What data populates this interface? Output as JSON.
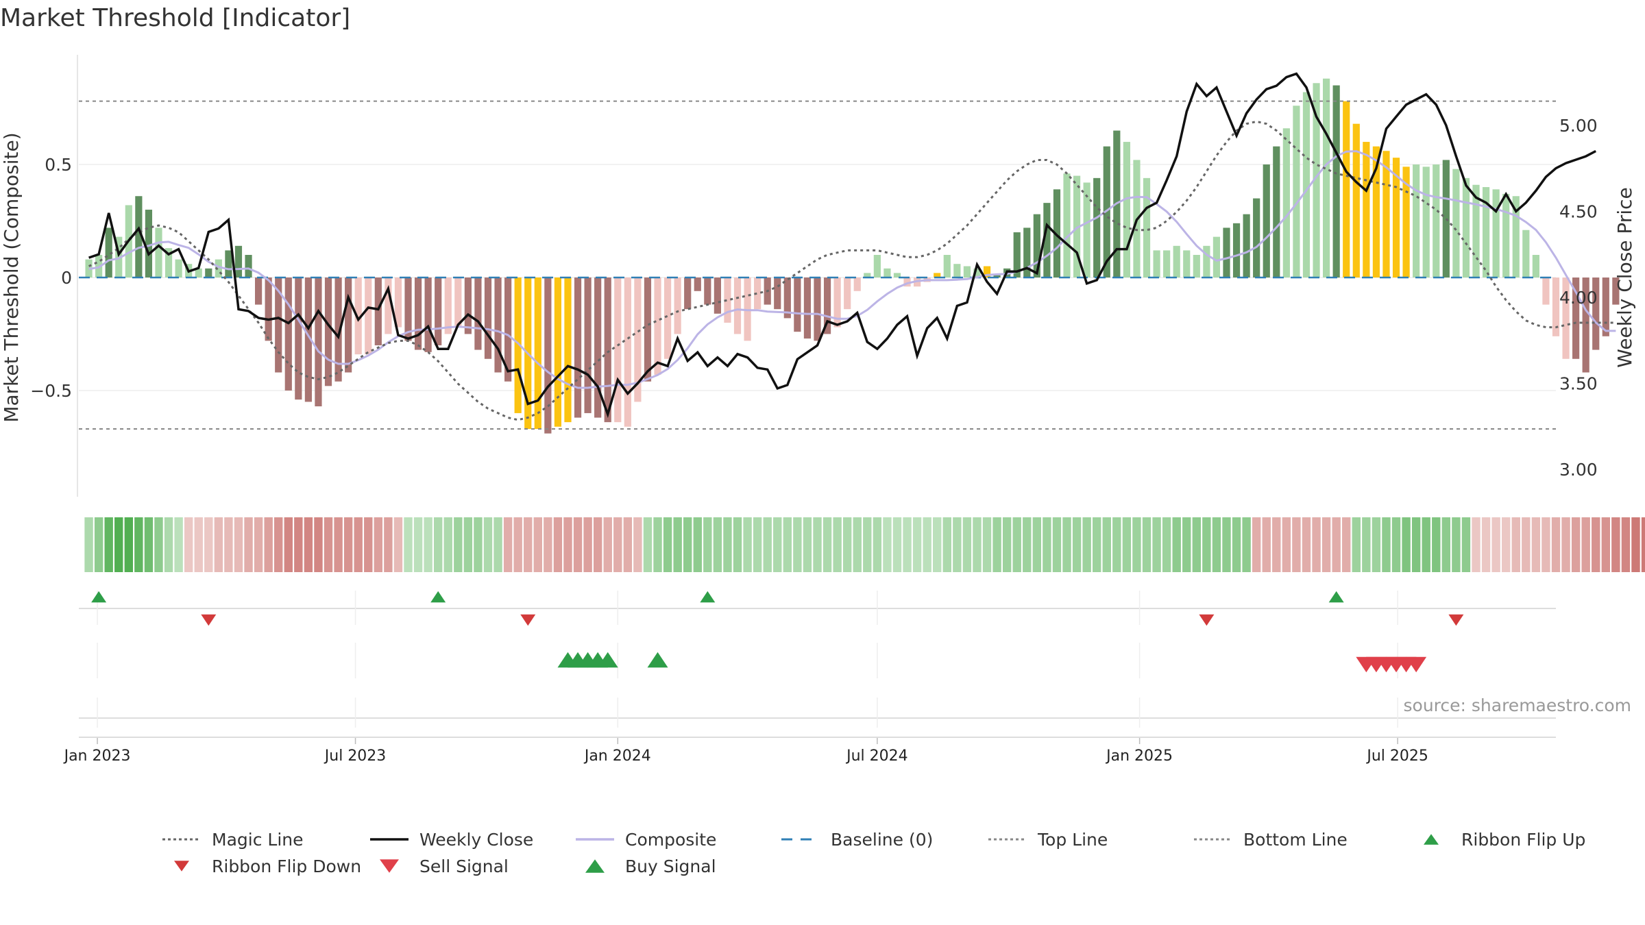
{
  "title": "Market Threshold [Indicator]",
  "source": "source: sharemaestro.com",
  "colors": {
    "dark_green": "#5f8f5f",
    "light_green": "#aad8aa",
    "dark_red": "#a87472",
    "light_red": "#f0c4c0",
    "gold": "#fbc311",
    "magic": "#666666",
    "close": "#111111",
    "composite": "#bcb4e6",
    "baseline": "#2f7fb5",
    "guide": "#888888",
    "buy": "#2e9e48",
    "sell": "#e0404a",
    "flip_up": "#2e9e48",
    "flip_down": "#d23a3a"
  },
  "chart_data": {
    "type": "bar",
    "ylabel": "Market Threshold (Composite)",
    "y2label": "Weekly Close Price",
    "ylim": [
      -0.97,
      0.97
    ],
    "y2lim": [
      2.84,
      5.39
    ],
    "yticks": [
      {
        "v": -0.5,
        "label": "−0.5"
      },
      {
        "v": 0,
        "label": "0"
      },
      {
        "v": 0.5,
        "label": "0.5"
      }
    ],
    "y2ticks": [
      {
        "v": 3.0,
        "label": "3.00"
      },
      {
        "v": 3.5,
        "label": "3.50"
      },
      {
        "v": 4.0,
        "label": "4.00"
      },
      {
        "v": 4.5,
        "label": "4.50"
      },
      {
        "v": 5.0,
        "label": "5.00"
      }
    ],
    "xlim": [
      "2022-12-19",
      "2025-10-20"
    ],
    "xticks": [
      {
        "date": "2023-01-01",
        "label": "Jan 2023"
      },
      {
        "date": "2023-07-01",
        "label": "Jul 2023"
      },
      {
        "date": "2024-01-01",
        "label": "Jan 2024"
      },
      {
        "date": "2024-07-01",
        "label": "Jul 2024"
      },
      {
        "date": "2025-01-01",
        "label": "Jan 2025"
      },
      {
        "date": "2025-07-01",
        "label": "Jul 2025"
      }
    ],
    "top_line": 0.78,
    "bottom_line": -0.67,
    "start_date": "2022-12-26",
    "composite_bars": [
      0.08,
      0.1,
      0.22,
      0.18,
      0.32,
      0.36,
      0.3,
      0.22,
      0.13,
      0.08,
      0.06,
      0.04,
      0.04,
      0.08,
      0.12,
      0.14,
      0.1,
      -0.12,
      -0.28,
      -0.42,
      -0.5,
      -0.54,
      -0.55,
      -0.57,
      -0.48,
      -0.46,
      -0.42,
      -0.34,
      -0.34,
      -0.3,
      -0.25,
      -0.22,
      -0.28,
      -0.32,
      -0.33,
      -0.3,
      -0.25,
      -0.22,
      -0.25,
      -0.32,
      -0.36,
      -0.42,
      -0.46,
      -0.6,
      -0.67,
      -0.67,
      -0.69,
      -0.66,
      -0.64,
      -0.62,
      -0.6,
      -0.62,
      -0.64,
      -0.64,
      -0.66,
      -0.55,
      -0.46,
      -0.43,
      -0.36,
      -0.25,
      -0.14,
      -0.06,
      -0.12,
      -0.16,
      -0.2,
      -0.25,
      -0.28,
      -0.14,
      -0.12,
      -0.14,
      -0.18,
      -0.24,
      -0.27,
      -0.28,
      -0.25,
      -0.22,
      -0.14,
      -0.06,
      0.02,
      0.1,
      0.04,
      0.02,
      -0.04,
      -0.04,
      -0.02,
      0.02,
      0.1,
      0.06,
      0.05,
      0.04,
      0.05,
      0.01,
      0.04,
      0.2,
      0.22,
      0.28,
      0.33,
      0.39,
      0.46,
      0.45,
      0.42,
      0.44,
      0.58,
      0.65,
      0.6,
      0.52,
      0.44,
      0.12,
      0.12,
      0.14,
      0.12,
      0.1,
      0.14,
      0.18,
      0.22,
      0.24,
      0.28,
      0.35,
      0.5,
      0.58,
      0.66,
      0.76,
      0.82,
      0.86,
      0.88,
      0.85,
      0.78,
      0.68,
      0.6,
      0.58,
      0.56,
      0.53,
      0.49,
      0.5,
      0.49,
      0.5,
      0.52,
      0.48,
      0.44,
      0.41,
      0.4,
      0.39,
      0.37,
      0.36,
      0.21,
      0.1,
      -0.12,
      -0.26,
      -0.36,
      -0.36,
      -0.42,
      -0.32,
      -0.26,
      -0.12
    ],
    "bar_classes": "lldllddllllldldddrrddddrrddlldlldrddlldrrddgggrggrrrrllldllldrrrlllldddrrddllllllllllgllllgdddddddllldddllllllllllddddddllllldgggggggllldllllllllllllrrddddrr",
    "ribbon": [
      0.4,
      0.6,
      0.9,
      1.0,
      1.0,
      0.9,
      0.8,
      0.6,
      0.4,
      0.3,
      -0.2,
      -0.2,
      -0.2,
      -0.3,
      -0.3,
      -0.3,
      -0.4,
      -0.4,
      -0.5,
      -0.6,
      -0.7,
      -0.7,
      -0.7,
      -0.7,
      -0.6,
      -0.6,
      -0.6,
      -0.6,
      -0.6,
      -0.5,
      -0.5,
      -0.3,
      0.3,
      0.3,
      0.3,
      0.4,
      0.4,
      0.5,
      0.5,
      0.5,
      0.4,
      0.4,
      -0.4,
      -0.4,
      -0.4,
      -0.4,
      -0.4,
      -0.5,
      -0.5,
      -0.5,
      -0.5,
      -0.5,
      -0.4,
      -0.4,
      -0.4,
      -0.3,
      0.4,
      0.5,
      0.6,
      0.6,
      0.6,
      0.6,
      0.5,
      0.5,
      0.5,
      0.5,
      0.4,
      0.4,
      0.4,
      0.4,
      0.4,
      0.4,
      0.4,
      0.4,
      0.4,
      0.4,
      0.4,
      0.4,
      0.4,
      0.4,
      0.3,
      0.3,
      0.3,
      0.3,
      0.3,
      0.3,
      0.4,
      0.4,
      0.4,
      0.4,
      0.4,
      0.5,
      0.5,
      0.5,
      0.5,
      0.5,
      0.5,
      0.5,
      0.5,
      0.5,
      0.5,
      0.5,
      0.5,
      0.5,
      0.5,
      0.5,
      0.5,
      0.5,
      0.5,
      0.6,
      0.6,
      0.6,
      0.6,
      0.6,
      0.6,
      0.6,
      0.6,
      -0.4,
      -0.4,
      -0.4,
      -0.4,
      -0.4,
      -0.4,
      -0.4,
      -0.4,
      -0.4,
      -0.4,
      0.5,
      0.5,
      0.5,
      0.6,
      0.6,
      0.7,
      0.7,
      0.7,
      0.7,
      0.6,
      0.6,
      0.6,
      -0.2,
      -0.2,
      -0.2,
      -0.2,
      -0.3,
      -0.3,
      -0.3,
      -0.3,
      -0.4,
      -0.4,
      -0.5,
      -0.5,
      -0.6,
      -0.6,
      -0.7,
      -0.7,
      -0.8,
      -0.8,
      -0.8,
      -0.7
    ],
    "weekly_close": [
      4.23,
      4.25,
      4.49,
      4.25,
      4.33,
      4.4,
      4.25,
      4.3,
      4.25,
      4.28,
      4.15,
      4.17,
      4.38,
      4.4,
      4.45,
      3.93,
      3.92,
      3.88,
      3.87,
      3.88,
      3.85,
      3.9,
      3.82,
      3.92,
      3.84,
      3.77,
      4.0,
      3.87,
      3.94,
      3.93,
      4.05,
      3.78,
      3.76,
      3.78,
      3.83,
      3.7,
      3.7,
      3.84,
      3.9,
      3.86,
      3.78,
      3.7,
      3.57,
      3.58,
      3.38,
      3.4,
      3.48,
      3.54,
      3.6,
      3.58,
      3.55,
      3.48,
      3.32,
      3.52,
      3.44,
      3.5,
      3.57,
      3.62,
      3.6,
      3.76,
      3.63,
      3.68,
      3.6,
      3.65,
      3.6,
      3.67,
      3.65,
      3.59,
      3.58,
      3.47,
      3.49,
      3.64,
      3.68,
      3.72,
      3.86,
      3.84,
      3.86,
      3.91,
      3.74,
      3.7,
      3.76,
      3.84,
      3.89,
      3.66,
      3.82,
      3.88,
      3.76,
      3.95,
      3.97,
      4.19,
      4.09,
      4.02,
      4.15,
      4.15,
      4.17,
      4.14,
      4.42,
      4.36,
      4.31,
      4.26,
      4.08,
      4.1,
      4.21,
      4.28,
      4.28,
      4.45,
      4.52,
      4.55,
      4.68,
      4.82,
      5.08,
      5.24,
      5.17,
      5.22,
      5.08,
      4.94,
      5.07,
      5.15,
      5.21,
      5.23,
      5.28,
      5.3,
      5.22,
      5.05,
      4.95,
      4.84,
      4.73,
      4.67,
      4.62,
      4.75,
      4.98,
      5.05,
      5.12,
      5.15,
      5.18,
      5.12,
      5.0,
      4.82,
      4.65,
      4.58,
      4.55,
      4.5,
      4.6,
      4.5,
      4.55,
      4.62,
      4.7,
      4.75,
      4.78,
      4.8,
      4.82,
      4.85
    ],
    "magic_line": [
      0.05,
      0.07,
      0.1,
      0.13,
      0.17,
      0.2,
      0.22,
      0.23,
      0.22,
      0.2,
      0.16,
      0.12,
      0.08,
      0.03,
      -0.02,
      -0.08,
      -0.14,
      -0.2,
      -0.27,
      -0.33,
      -0.38,
      -0.42,
      -0.44,
      -0.45,
      -0.44,
      -0.42,
      -0.39,
      -0.36,
      -0.33,
      -0.31,
      -0.29,
      -0.28,
      -0.28,
      -0.3,
      -0.33,
      -0.37,
      -0.42,
      -0.47,
      -0.51,
      -0.55,
      -0.58,
      -0.6,
      -0.62,
      -0.63,
      -0.62,
      -0.6,
      -0.57,
      -0.53,
      -0.49,
      -0.45,
      -0.41,
      -0.37,
      -0.33,
      -0.3,
      -0.27,
      -0.24,
      -0.21,
      -0.19,
      -0.17,
      -0.15,
      -0.14,
      -0.13,
      -0.12,
      -0.11,
      -0.1,
      -0.09,
      -0.08,
      -0.07,
      -0.06,
      -0.04,
      -0.01,
      0.02,
      0.05,
      0.08,
      0.1,
      0.11,
      0.12,
      0.12,
      0.12,
      0.12,
      0.11,
      0.1,
      0.09,
      0.09,
      0.1,
      0.12,
      0.15,
      0.19,
      0.23,
      0.28,
      0.33,
      0.38,
      0.43,
      0.47,
      0.5,
      0.52,
      0.52,
      0.5,
      0.46,
      0.41,
      0.36,
      0.31,
      0.27,
      0.24,
      0.22,
      0.21,
      0.21,
      0.22,
      0.25,
      0.29,
      0.34,
      0.4,
      0.47,
      0.54,
      0.6,
      0.65,
      0.68,
      0.69,
      0.68,
      0.65,
      0.61,
      0.57,
      0.53,
      0.5,
      0.48,
      0.46,
      0.45,
      0.44,
      0.43,
      0.42,
      0.41,
      0.4,
      0.38,
      0.36,
      0.33,
      0.3,
      0.26,
      0.21,
      0.15,
      0.09,
      0.03,
      -0.04,
      -0.1,
      -0.15,
      -0.19,
      -0.21,
      -0.22,
      -0.22,
      -0.21,
      -0.2,
      -0.2,
      -0.2,
      -0.2,
      -0.2
    ],
    "ribbon_flip_up_weeks": [
      1,
      35,
      62,
      125
    ],
    "ribbon_flip_down_weeks": [
      12,
      44,
      112,
      137
    ],
    "buy_signal_weeks": [
      48,
      49,
      50,
      51,
      52,
      57
    ],
    "sell_signal_weeks": [
      128,
      129,
      130,
      131,
      132,
      133
    ]
  },
  "legend": [
    {
      "label": "Magic Line",
      "kind": "dotted",
      "color": "#666666"
    },
    {
      "label": "Weekly Close",
      "kind": "solid",
      "color": "#111111"
    },
    {
      "label": "Composite",
      "kind": "solid",
      "color": "#bcb4e6"
    },
    {
      "label": "Baseline (0)",
      "kind": "dashed",
      "color": "#2f7fb5"
    },
    {
      "label": "Top Line",
      "kind": "dotted",
      "color": "#888888"
    },
    {
      "label": "Bottom Line",
      "kind": "dotted",
      "color": "#888888"
    },
    {
      "label": "Ribbon Flip Up",
      "kind": "tri-up",
      "color": "#2e9e48"
    },
    {
      "label": "Ribbon Flip Down",
      "kind": "tri-down",
      "color": "#d23a3a"
    },
    {
      "label": "Sell Signal",
      "kind": "tri-down-big",
      "color": "#e0404a"
    },
    {
      "label": "Buy Signal",
      "kind": "tri-up-big",
      "color": "#2e9e48"
    }
  ]
}
